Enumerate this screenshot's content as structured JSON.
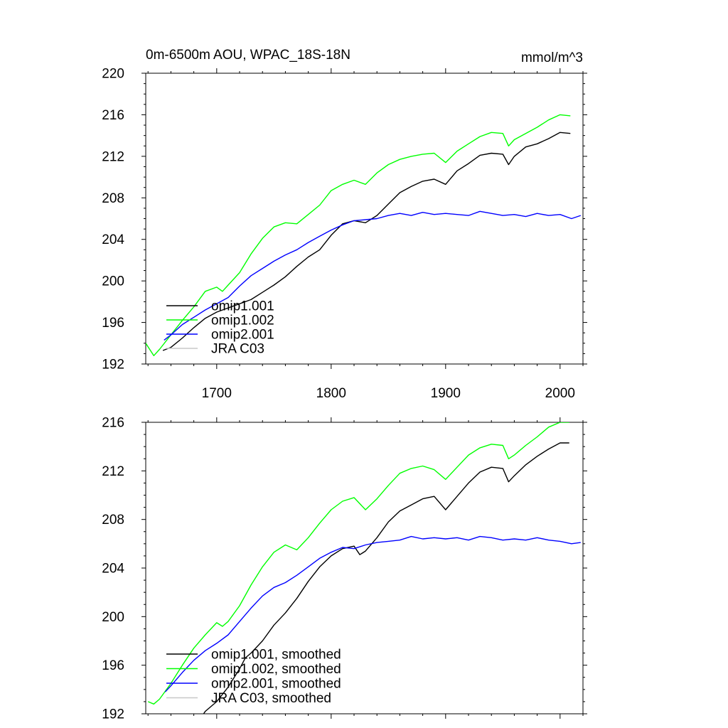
{
  "chart_data": [
    {
      "type": "line",
      "title": "0m-6500m AOU, WPAC_18S-18N",
      "units": "mmol/m^3",
      "xlim": [
        1638,
        2020
      ],
      "ylim": [
        192,
        220
      ],
      "x_ticks": [
        1700,
        1800,
        1900,
        2000
      ],
      "y_ticks": [
        192,
        196,
        200,
        204,
        208,
        212,
        216,
        220
      ],
      "grid": false,
      "legend_position": "bottom-left",
      "legend": [
        "omip1.001",
        "omip1.002",
        "omip2.001",
        "JRA C03"
      ],
      "series": [
        {
          "name": "omip1.001",
          "color": "#000000",
          "x": [
            1653,
            1660,
            1670,
            1680,
            1690,
            1700,
            1710,
            1720,
            1730,
            1740,
            1750,
            1760,
            1770,
            1780,
            1790,
            1800,
            1810,
            1820,
            1830,
            1840,
            1850,
            1860,
            1870,
            1880,
            1890,
            1900,
            1910,
            1920,
            1930,
            1940,
            1950,
            1955,
            1960,
            1970,
            1980,
            1990,
            2000,
            2009
          ],
          "values": [
            193.3,
            193.6,
            194.5,
            195.5,
            196.4,
            197.0,
            197.4,
            197.8,
            198.2,
            198.9,
            199.6,
            200.4,
            201.4,
            202.3,
            203.0,
            204.4,
            205.5,
            205.8,
            205.6,
            206.3,
            207.4,
            208.5,
            209.1,
            209.6,
            209.8,
            209.3,
            210.6,
            211.3,
            212.1,
            212.3,
            212.2,
            211.2,
            212.0,
            212.9,
            213.2,
            213.7,
            214.3,
            214.2
          ]
        },
        {
          "name": "omip1.002",
          "color": "#00ff00",
          "x": [
            1638,
            1645,
            1650,
            1660,
            1670,
            1680,
            1690,
            1700,
            1705,
            1710,
            1720,
            1730,
            1740,
            1750,
            1760,
            1770,
            1780,
            1790,
            1800,
            1810,
            1820,
            1830,
            1840,
            1850,
            1860,
            1870,
            1880,
            1890,
            1900,
            1910,
            1920,
            1930,
            1940,
            1950,
            1955,
            1960,
            1970,
            1980,
            1990,
            2000,
            2009
          ],
          "values": [
            194.0,
            192.8,
            193.4,
            194.8,
            196.2,
            197.5,
            199.0,
            199.4,
            199.0,
            199.6,
            200.8,
            202.6,
            204.1,
            205.2,
            205.6,
            205.5,
            206.4,
            207.3,
            208.7,
            209.3,
            209.7,
            209.3,
            210.4,
            211.2,
            211.7,
            212.0,
            212.2,
            212.3,
            211.4,
            212.5,
            213.2,
            213.9,
            214.3,
            214.2,
            213.0,
            213.6,
            214.2,
            214.8,
            215.5,
            216.0,
            215.9
          ]
        },
        {
          "name": "omip2.001",
          "color": "#0000ff",
          "x": [
            1654,
            1660,
            1670,
            1680,
            1690,
            1700,
            1710,
            1720,
            1730,
            1740,
            1750,
            1760,
            1770,
            1780,
            1790,
            1800,
            1810,
            1820,
            1830,
            1840,
            1850,
            1860,
            1870,
            1880,
            1890,
            1900,
            1910,
            1920,
            1930,
            1940,
            1950,
            1960,
            1970,
            1980,
            1990,
            2000,
            2010,
            2018
          ],
          "values": [
            194.3,
            194.8,
            195.8,
            196.5,
            197.2,
            197.8,
            198.4,
            199.5,
            200.5,
            201.2,
            201.9,
            202.5,
            203.0,
            203.7,
            204.3,
            204.9,
            205.4,
            205.8,
            205.9,
            206.0,
            206.3,
            206.5,
            206.3,
            206.6,
            206.4,
            206.5,
            206.4,
            206.3,
            206.7,
            206.5,
            206.3,
            206.4,
            206.2,
            206.5,
            206.3,
            206.4,
            206.0,
            206.3
          ]
        },
        {
          "name": "JRA C03",
          "color": "#c8c8c8",
          "x": [],
          "values": []
        }
      ]
    },
    {
      "type": "line",
      "title": "",
      "xlim": [
        1638,
        2020
      ],
      "ylim": [
        192,
        216
      ],
      "x_ticks": [
        1700,
        1800,
        1900,
        2000
      ],
      "y_ticks": [
        192,
        196,
        200,
        204,
        208,
        212,
        216
      ],
      "grid": false,
      "legend_position": "bottom-left",
      "legend": [
        "omip1.001, smoothed",
        "omip1.002, smoothed",
        "omip2.001, smoothed",
        "JRA C03, smoothed"
      ],
      "series": [
        {
          "name": "omip1.001, smoothed",
          "color": "#000000",
          "x": [
            1685,
            1690,
            1700,
            1710,
            1720,
            1725,
            1730,
            1740,
            1750,
            1760,
            1770,
            1780,
            1790,
            1800,
            1810,
            1820,
            1825,
            1830,
            1840,
            1850,
            1860,
            1870,
            1880,
            1890,
            1900,
            1910,
            1920,
            1930,
            1940,
            1950,
            1955,
            1960,
            1970,
            1980,
            1990,
            2000,
            2008
          ],
          "values": [
            191.5,
            192.2,
            193.0,
            194.2,
            195.7,
            196.6,
            197.0,
            198.0,
            199.3,
            200.3,
            201.5,
            202.9,
            204.1,
            205.0,
            205.6,
            205.8,
            205.1,
            205.4,
            206.5,
            207.8,
            208.7,
            209.2,
            209.7,
            209.9,
            208.8,
            209.9,
            211.0,
            211.9,
            212.3,
            212.2,
            211.1,
            211.6,
            212.5,
            213.2,
            213.8,
            214.3,
            214.3
          ]
        },
        {
          "name": "omip1.002, smoothed",
          "color": "#00ff00",
          "x": [
            1640,
            1645,
            1650,
            1660,
            1670,
            1680,
            1690,
            1700,
            1705,
            1710,
            1720,
            1730,
            1740,
            1750,
            1760,
            1770,
            1780,
            1790,
            1800,
            1810,
            1820,
            1830,
            1840,
            1850,
            1860,
            1870,
            1880,
            1890,
            1900,
            1910,
            1920,
            1930,
            1940,
            1950,
            1955,
            1960,
            1970,
            1980,
            1990,
            2000,
            2008
          ],
          "values": [
            193.0,
            192.8,
            193.2,
            194.5,
            196.0,
            197.4,
            198.5,
            199.5,
            199.2,
            199.6,
            200.9,
            202.6,
            204.1,
            205.3,
            205.9,
            205.5,
            206.5,
            207.7,
            208.8,
            209.5,
            209.8,
            208.8,
            209.7,
            210.8,
            211.8,
            212.2,
            212.4,
            212.1,
            211.3,
            212.3,
            213.3,
            213.9,
            214.2,
            214.1,
            213.0,
            213.3,
            214.1,
            214.8,
            215.6,
            216.0,
            216.0
          ]
        },
        {
          "name": "omip2.001, smoothed",
          "color": "#0000ff",
          "x": [
            1655,
            1660,
            1670,
            1680,
            1690,
            1700,
            1710,
            1720,
            1730,
            1740,
            1750,
            1760,
            1770,
            1780,
            1790,
            1800,
            1810,
            1820,
            1830,
            1840,
            1850,
            1860,
            1870,
            1880,
            1890,
            1900,
            1910,
            1920,
            1930,
            1940,
            1950,
            1960,
            1970,
            1980,
            1990,
            2000,
            2010,
            2018
          ],
          "values": [
            193.8,
            194.3,
            195.4,
            196.4,
            197.2,
            197.8,
            198.5,
            199.6,
            200.7,
            201.7,
            202.4,
            202.8,
            203.4,
            204.1,
            204.8,
            205.3,
            205.7,
            205.6,
            205.9,
            206.1,
            206.2,
            206.3,
            206.6,
            206.4,
            206.5,
            206.4,
            206.5,
            206.3,
            206.6,
            206.5,
            206.3,
            206.4,
            206.3,
            206.5,
            206.3,
            206.2,
            206.0,
            206.1
          ]
        },
        {
          "name": "JRA C03, smoothed",
          "color": "#c8c8c8",
          "x": [],
          "values": []
        }
      ]
    }
  ]
}
